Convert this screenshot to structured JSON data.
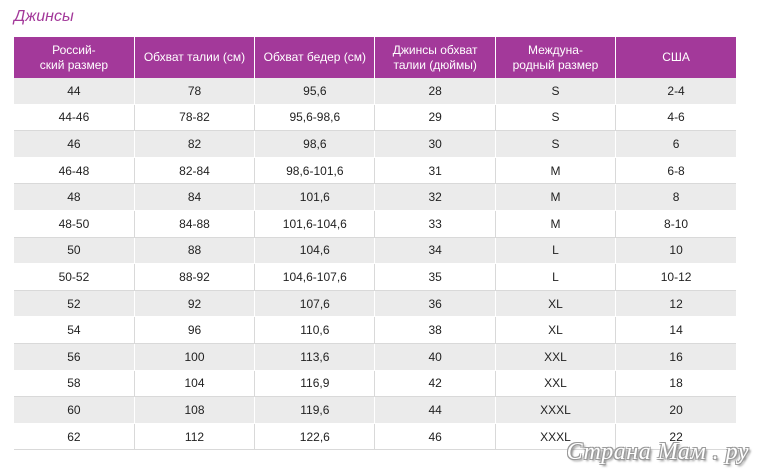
{
  "page": {
    "title": "Джинсы",
    "watermark": "Страна Мам . ру"
  },
  "colors": {
    "accent": "#a3399a",
    "stripe": "#ebebeb",
    "text": "#222222"
  },
  "table": {
    "headers": [
      "Россий-\nский размер",
      "Обхват талии (см)",
      "Обхват бедер (см)",
      "Джинсы обхват\nталии (дюймы)",
      "Междуна-\nродный размер",
      "США"
    ],
    "rows": [
      [
        "44",
        "78",
        "95,6",
        "28",
        "S",
        "2-4"
      ],
      [
        "44-46",
        "78-82",
        "95,6-98,6",
        "29",
        "S",
        "4-6"
      ],
      [
        "46",
        "82",
        "98,6",
        "30",
        "S",
        "6"
      ],
      [
        "46-48",
        "82-84",
        "98,6-101,6",
        "31",
        "M",
        "6-8"
      ],
      [
        "48",
        "84",
        "101,6",
        "32",
        "M",
        "8"
      ],
      [
        "48-50",
        "84-88",
        "101,6-104,6",
        "33",
        "M",
        "8-10"
      ],
      [
        "50",
        "88",
        "104,6",
        "34",
        "L",
        "10"
      ],
      [
        "50-52",
        "88-92",
        "104,6-107,6",
        "35",
        "L",
        "10-12"
      ],
      [
        "52",
        "92",
        "107,6",
        "36",
        "XL",
        "12"
      ],
      [
        "54",
        "96",
        "110,6",
        "38",
        "XL",
        "14"
      ],
      [
        "56",
        "100",
        "113,6",
        "40",
        "XXL",
        "16"
      ],
      [
        "58",
        "104",
        "116,9",
        "42",
        "XXL",
        "18"
      ],
      [
        "60",
        "108",
        "119,6",
        "44",
        "XXXL",
        "20"
      ],
      [
        "62",
        "112",
        "122,6",
        "46",
        "XXXL",
        "22"
      ]
    ]
  }
}
